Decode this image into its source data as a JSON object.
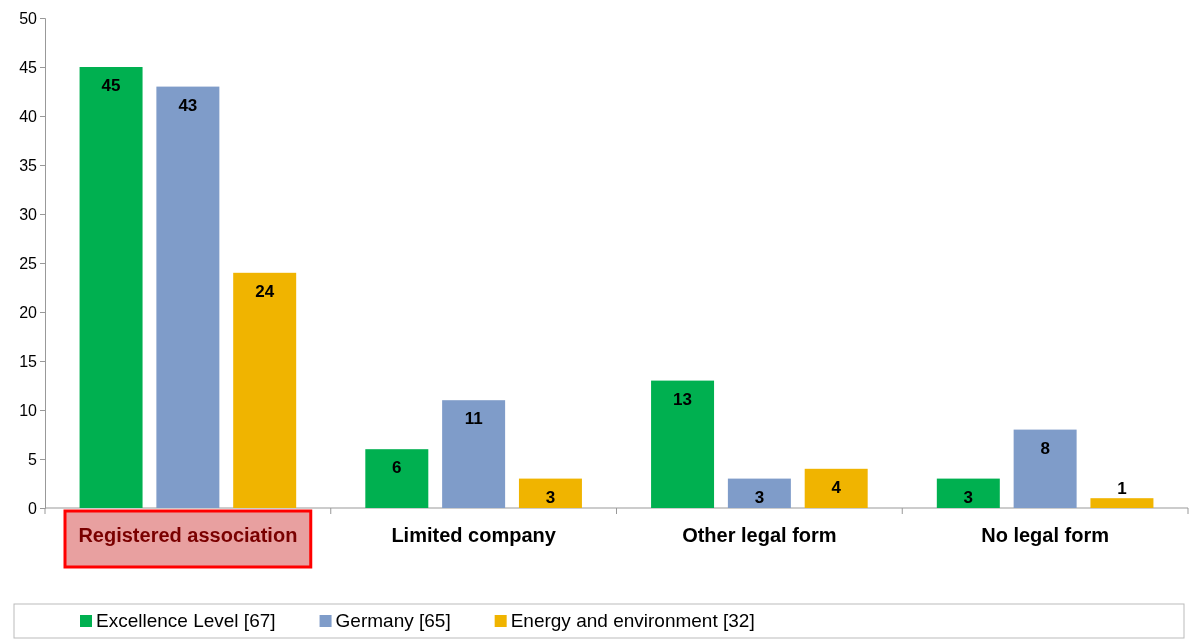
{
  "chart_data": {
    "type": "bar",
    "categories": [
      "Registered association",
      "Limited company",
      "Other legal form",
      "No legal form"
    ],
    "series": [
      {
        "name": "Excellence Level [67]",
        "color": "#00b050",
        "values": [
          45,
          6,
          13,
          3
        ]
      },
      {
        "name": "Germany [65]",
        "color": "#7f9cc9",
        "values": [
          43,
          11,
          3,
          8
        ]
      },
      {
        "name": "Energy and environment [32]",
        "color": "#f0b400",
        "values": [
          24,
          3,
          4,
          1
        ]
      }
    ],
    "ylim": [
      0,
      50
    ],
    "yticks": [
      0,
      5,
      10,
      15,
      20,
      25,
      30,
      35,
      40,
      45,
      50
    ],
    "grid": false,
    "legend": "bottom",
    "data_labels": true
  }
}
